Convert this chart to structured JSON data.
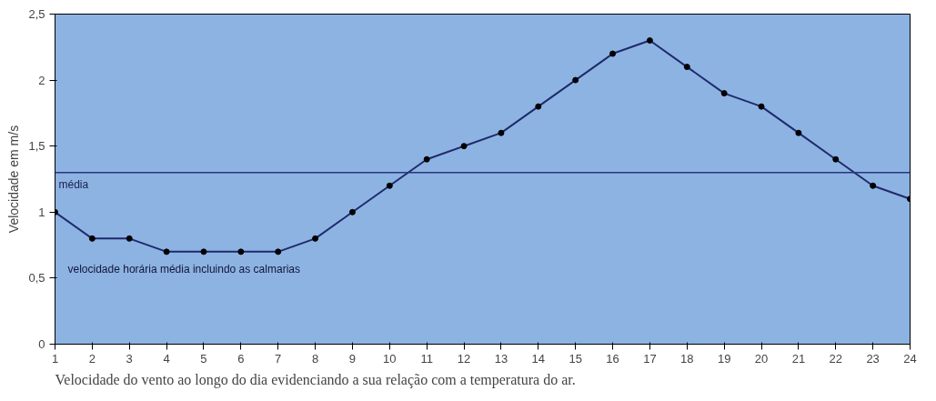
{
  "chart_data": {
    "type": "line",
    "x": [
      1,
      2,
      3,
      4,
      5,
      6,
      7,
      8,
      9,
      10,
      11,
      12,
      13,
      14,
      15,
      16,
      17,
      18,
      19,
      20,
      21,
      22,
      23,
      24
    ],
    "series": [
      {
        "name": "velocidade horária média incluindo as calmarias",
        "color": "#1f2a6e",
        "values": [
          1.0,
          0.8,
          0.8,
          0.7,
          0.7,
          0.7,
          0.7,
          0.8,
          1.0,
          1.2,
          1.4,
          1.5,
          1.6,
          1.8,
          2.0,
          2.2,
          2.3,
          2.1,
          1.9,
          1.8,
          1.6,
          1.4,
          1.2,
          1.1
        ]
      }
    ],
    "ylabel": "Velocidade em m/s",
    "xlim": [
      1,
      24
    ],
    "xticks": [
      1,
      2,
      3,
      4,
      5,
      6,
      7,
      8,
      9,
      10,
      11,
      12,
      13,
      14,
      15,
      16,
      17,
      18,
      19,
      20,
      21,
      22,
      23,
      24
    ],
    "ylim": [
      0,
      2.5
    ],
    "yticks": [
      0,
      {
        "value": 0.5,
        "label": "0,5"
      },
      1,
      {
        "value": 1.5,
        "label": "1,5"
      },
      2,
      {
        "value": 2.5,
        "label": "2,5"
      }
    ],
    "ref_lines": [
      {
        "axis": "y",
        "value": 1.3,
        "label": "média",
        "color": "#2a3580"
      }
    ],
    "annotations": [
      "Velocidade do vento ao longo do dia evidenciando a sua relação com a temperatura do ar."
    ],
    "marker": "circle",
    "line_style": "solid",
    "grid": false,
    "legend": false
  }
}
